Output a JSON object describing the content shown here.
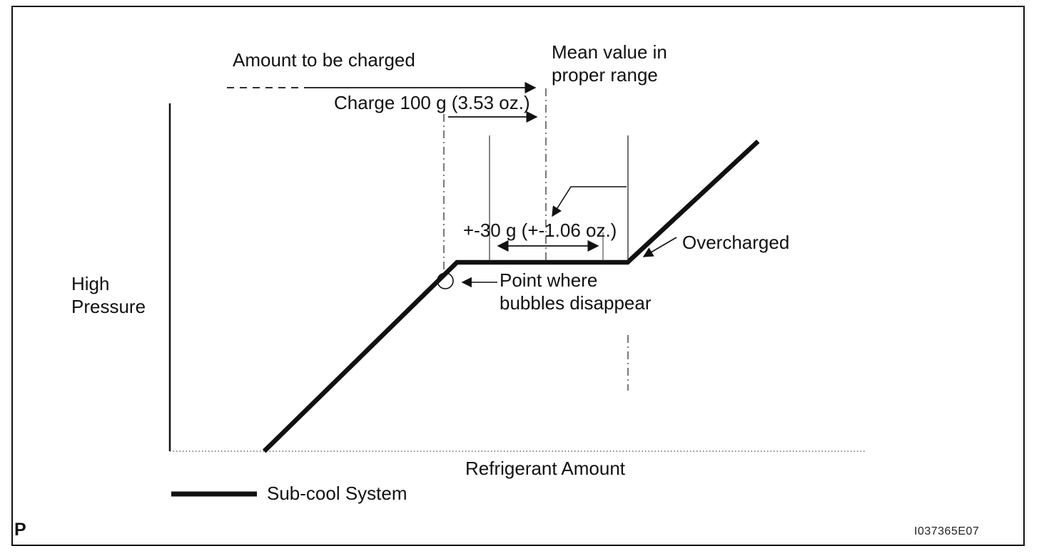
{
  "figure": {
    "page_marker": "P",
    "figure_code": "I037365E07"
  },
  "labels": {
    "amount_to_be_charged": "Amount to be charged",
    "mean_value_line1": "Mean value in",
    "mean_value_line2": "proper range",
    "charge_amount": "Charge 100 g (3.53 oz.)",
    "tolerance": "+-30 g (+-1.06 oz.)",
    "overcharged": "Overcharged",
    "bubbles_line1": "Point where",
    "bubbles_line2": "bubbles disappear",
    "y_axis_line1": "High",
    "y_axis_line2": "Pressure",
    "x_axis": "Refrigerant Amount",
    "legend": "Sub-cool System"
  },
  "colors": {
    "line": "#111111",
    "guide": "#333333",
    "axis_dotted": "#666666",
    "background": "#ffffff"
  },
  "chart_data": {
    "type": "line",
    "title": "",
    "xlabel": "Refrigerant Amount",
    "ylabel": "High Pressure",
    "legend_position": "bottom-left",
    "axes_numeric": false,
    "grid": false,
    "series": [
      {
        "name": "Sub-cool System",
        "description": "High pressure rises with refrigerant amount, plateaus between the point where bubbles disappear and the overcharge point, then rises again when overcharged",
        "points_fraction": [
          {
            "x": 0.136,
            "y": 0.0
          },
          {
            "x": 0.414,
            "y": 0.543
          },
          {
            "x": 0.66,
            "y": 0.543
          },
          {
            "x": 0.848,
            "y": 0.891
          }
        ]
      }
    ],
    "annotations": [
      "Amount to be charged",
      "Charge 100 g (3.53 oz.)",
      "Mean value in proper range",
      "+-30 g (+-1.06 oz.)",
      "Point where bubbles disappear",
      "Overcharged"
    ]
  }
}
